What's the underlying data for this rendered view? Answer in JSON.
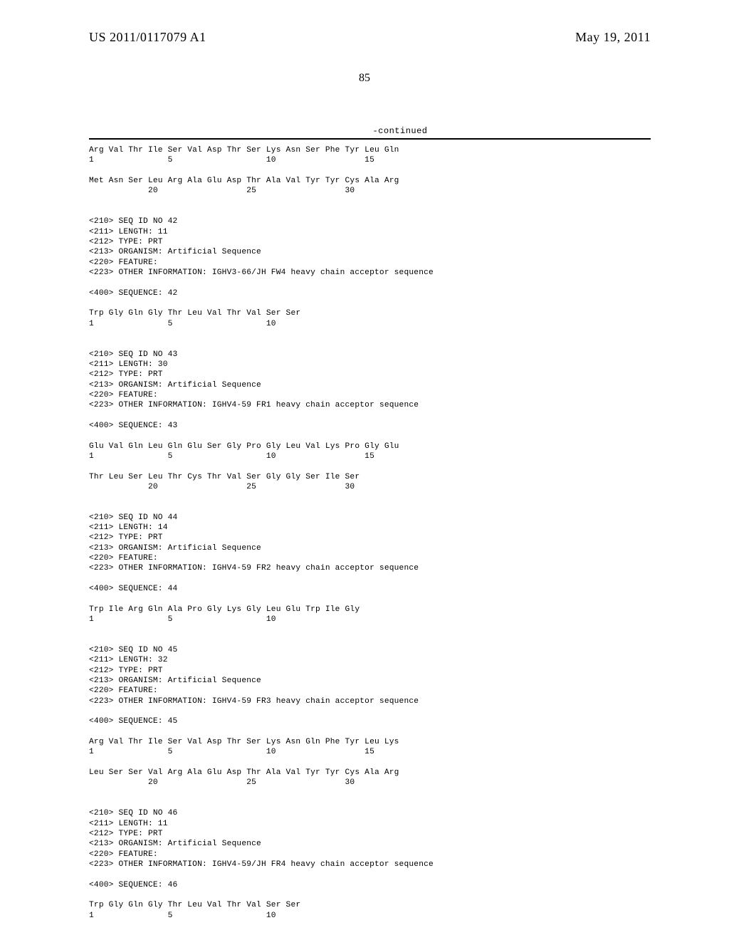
{
  "header": {
    "pub_number": "US 2011/0117079 A1",
    "pub_date": "May 19, 2011"
  },
  "page_number": "85",
  "continued_label": "-continued",
  "listing_text": "Arg Val Thr Ile Ser Val Asp Thr Ser Lys Asn Ser Phe Tyr Leu Gln\n1               5                   10                  15\n\nMet Asn Ser Leu Arg Ala Glu Asp Thr Ala Val Tyr Tyr Cys Ala Arg\n            20                  25                  30\n\n\n<210> SEQ ID NO 42\n<211> LENGTH: 11\n<212> TYPE: PRT\n<213> ORGANISM: Artificial Sequence\n<220> FEATURE:\n<223> OTHER INFORMATION: IGHV3-66/JH FW4 heavy chain acceptor sequence\n\n<400> SEQUENCE: 42\n\nTrp Gly Gln Gly Thr Leu Val Thr Val Ser Ser\n1               5                   10\n\n\n<210> SEQ ID NO 43\n<211> LENGTH: 30\n<212> TYPE: PRT\n<213> ORGANISM: Artificial Sequence\n<220> FEATURE:\n<223> OTHER INFORMATION: IGHV4-59 FR1 heavy chain acceptor sequence\n\n<400> SEQUENCE: 43\n\nGlu Val Gln Leu Gln Glu Ser Gly Pro Gly Leu Val Lys Pro Gly Glu\n1               5                   10                  15\n\nThr Leu Ser Leu Thr Cys Thr Val Ser Gly Gly Ser Ile Ser\n            20                  25                  30\n\n\n<210> SEQ ID NO 44\n<211> LENGTH: 14\n<212> TYPE: PRT\n<213> ORGANISM: Artificial Sequence\n<220> FEATURE:\n<223> OTHER INFORMATION: IGHV4-59 FR2 heavy chain acceptor sequence\n\n<400> SEQUENCE: 44\n\nTrp Ile Arg Gln Ala Pro Gly Lys Gly Leu Glu Trp Ile Gly\n1               5                   10\n\n\n<210> SEQ ID NO 45\n<211> LENGTH: 32\n<212> TYPE: PRT\n<213> ORGANISM: Artificial Sequence\n<220> FEATURE:\n<223> OTHER INFORMATION: IGHV4-59 FR3 heavy chain acceptor sequence\n\n<400> SEQUENCE: 45\n\nArg Val Thr Ile Ser Val Asp Thr Ser Lys Asn Gln Phe Tyr Leu Lys\n1               5                   10                  15\n\nLeu Ser Ser Val Arg Ala Glu Asp Thr Ala Val Tyr Tyr Cys Ala Arg\n            20                  25                  30\n\n\n<210> SEQ ID NO 46\n<211> LENGTH: 11\n<212> TYPE: PRT\n<213> ORGANISM: Artificial Sequence\n<220> FEATURE:\n<223> OTHER INFORMATION: IGHV4-59/JH FR4 heavy chain acceptor sequence\n\n<400> SEQUENCE: 46\n\nTrp Gly Gln Gly Thr Leu Val Thr Val Ser Ser\n1               5                   10"
}
